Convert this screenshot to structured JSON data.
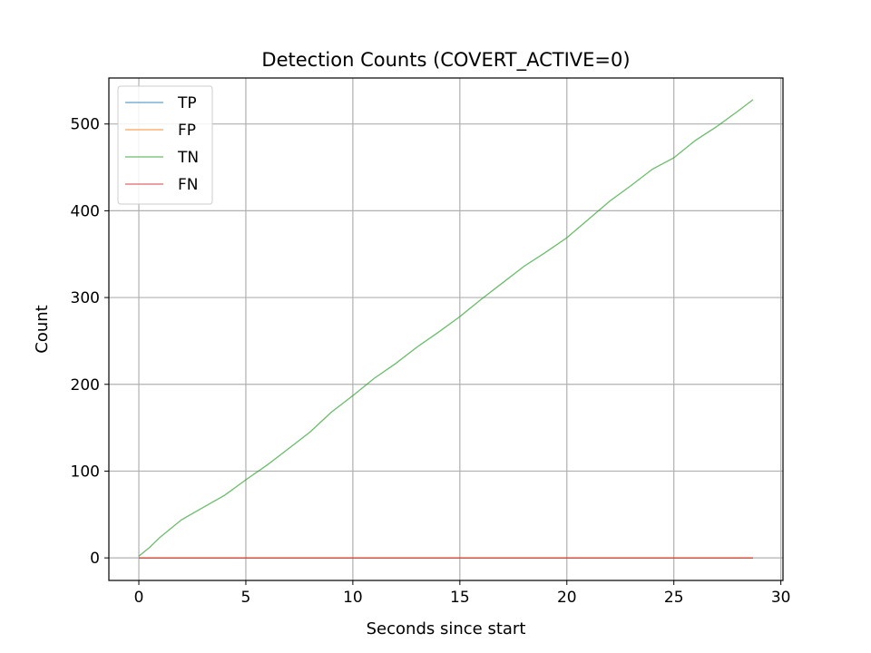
{
  "chart_data": {
    "type": "line",
    "title": "Detection Counts (COVERT_ACTIVE=0)",
    "xlabel": "Seconds since start",
    "ylabel": "Count",
    "xlim": [
      -1.4,
      30.1
    ],
    "ylim": [
      -26,
      553
    ],
    "x_ticks": [
      0,
      5,
      10,
      15,
      20,
      25,
      30
    ],
    "y_ticks": [
      0,
      100,
      200,
      300,
      400,
      500
    ],
    "grid": true,
    "legend_position": "top-left",
    "series": [
      {
        "name": "TP",
        "color": "#1f77b4",
        "x": [
          0,
          28.7
        ],
        "y": [
          0,
          0
        ]
      },
      {
        "name": "FP",
        "color": "#ff7f0e",
        "x": [
          0,
          28.7
        ],
        "y": [
          0,
          0
        ]
      },
      {
        "name": "TN",
        "color": "#2ca02c",
        "x": [
          0,
          0.5,
          1,
          2,
          3,
          4,
          5,
          6,
          7,
          8,
          9,
          10,
          11,
          12,
          13,
          14,
          15,
          16,
          17,
          18,
          19,
          20,
          21,
          22,
          23,
          24,
          25,
          26,
          27,
          28,
          28.7
        ],
        "y": [
          2,
          12,
          24,
          44,
          58,
          72,
          90,
          107,
          126,
          145,
          168,
          187,
          207,
          224,
          243,
          260,
          278,
          298,
          317,
          336,
          352,
          369,
          390,
          411,
          429,
          448,
          461,
          481,
          497,
          515,
          528
        ]
      },
      {
        "name": "FN",
        "color": "#d62728",
        "x": [
          0,
          28.7
        ],
        "y": [
          0,
          0
        ]
      }
    ]
  }
}
